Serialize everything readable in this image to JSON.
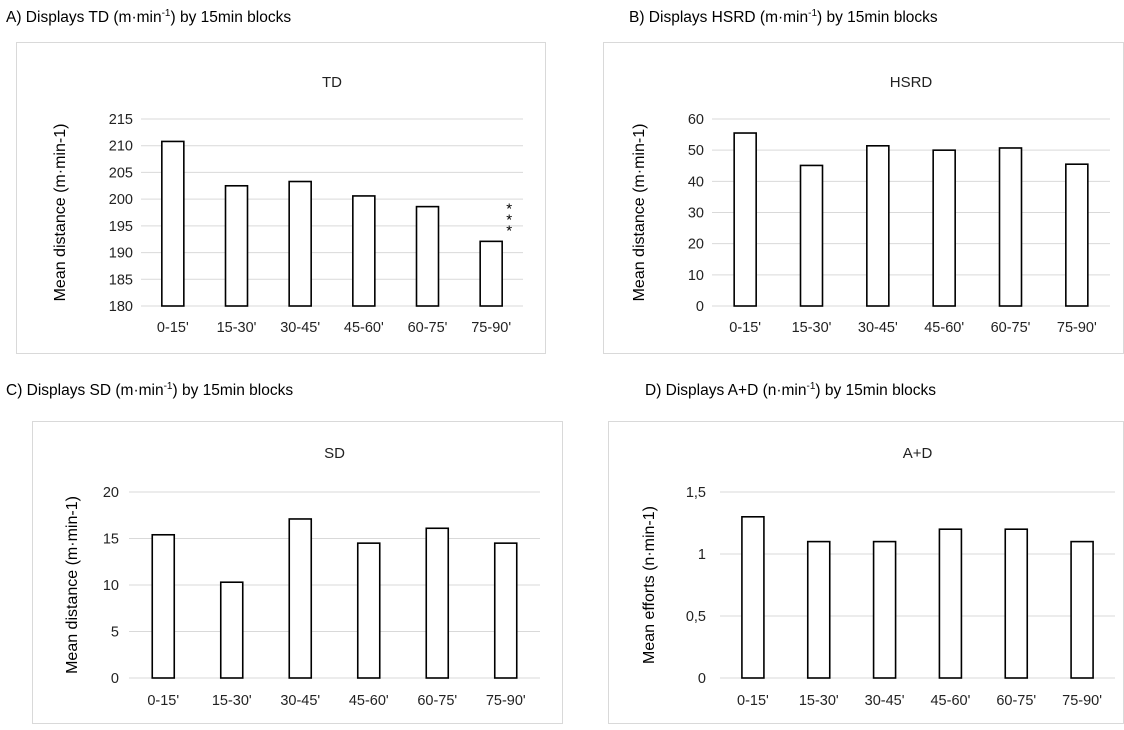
{
  "captions": [
    {
      "pre": "A) Displays TD (m·min",
      "sup": "-1",
      "post": ") by 15min blocks"
    },
    {
      "pre": "B) Displays HSRD (m·min",
      "sup": "-1",
      "post": ") by 15min blocks"
    },
    {
      "pre": "C) Displays SD (m·min",
      "sup": "-1",
      "post": ") by 15min blocks"
    },
    {
      "pre": "D) Displays A+D (n·min",
      "sup": "-1",
      "post": ") by 15min blocks"
    }
  ],
  "chart_data": [
    {
      "type": "bar",
      "title": "TD",
      "ylabel": "Mean distance (m·min-1)",
      "categories": [
        "0-15'",
        "15-30'",
        "30-45'",
        "45-60'",
        "60-75'",
        "75-90'"
      ],
      "values": [
        210.8,
        202.5,
        203.3,
        200.6,
        198.6,
        192.1
      ],
      "ylim": [
        180,
        215
      ],
      "yticks": [
        "180",
        "185",
        "190",
        "195",
        "200",
        "205",
        "210",
        "215"
      ],
      "ytick_values": [
        180,
        185,
        190,
        195,
        200,
        205,
        210,
        215
      ],
      "annotation": {
        "category": "75-90'",
        "text": "***"
      },
      "grid": true,
      "legend": "none"
    },
    {
      "type": "bar",
      "title": "HSRD",
      "ylabel": "Mean distance (m·min-1)",
      "categories": [
        "0-15'",
        "15-30'",
        "30-45'",
        "45-60'",
        "60-75'",
        "75-90'"
      ],
      "values": [
        55.5,
        45.1,
        51.4,
        50.0,
        50.7,
        45.5
      ],
      "ylim": [
        0,
        60
      ],
      "yticks": [
        "0",
        "10",
        "20",
        "30",
        "40",
        "50",
        "60"
      ],
      "ytick_values": [
        0,
        10,
        20,
        30,
        40,
        50,
        60
      ],
      "grid": true,
      "legend": "none"
    },
    {
      "type": "bar",
      "title": "SD",
      "ylabel": "Mean distance (m·min-1)",
      "categories": [
        "0-15'",
        "15-30'",
        "30-45'",
        "45-60'",
        "60-75'",
        "75-90'"
      ],
      "values": [
        15.4,
        10.3,
        17.1,
        14.5,
        16.1,
        14.5
      ],
      "ylim": [
        0,
        20
      ],
      "yticks": [
        "0",
        "5",
        "10",
        "15",
        "20"
      ],
      "ytick_values": [
        0,
        5,
        10,
        15,
        20
      ],
      "grid": true,
      "legend": "none"
    },
    {
      "type": "bar",
      "title": "A+D",
      "ylabel": "Mean efforts (n·min-1)",
      "categories": [
        "0-15'",
        "15-30'",
        "30-45'",
        "45-60'",
        "60-75'",
        "75-90'"
      ],
      "values": [
        1.3,
        1.1,
        1.1,
        1.2,
        1.2,
        1.1
      ],
      "ylim": [
        0,
        1.5
      ],
      "yticks": [
        "0",
        "0,5",
        "1",
        "1,5"
      ],
      "ytick_values": [
        0,
        0.5,
        1,
        1.5
      ],
      "grid": true,
      "legend": "none"
    }
  ]
}
